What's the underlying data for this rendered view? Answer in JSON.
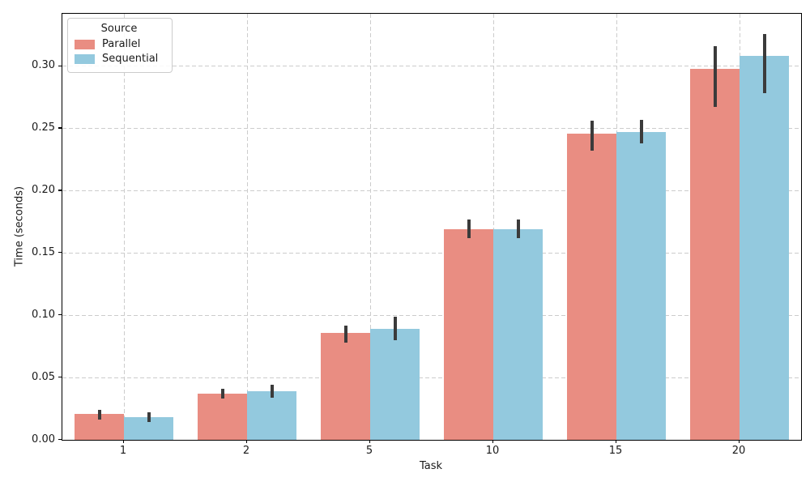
{
  "chart_data": {
    "type": "bar",
    "title": "",
    "xlabel": "Task",
    "ylabel": "Time (seconds)",
    "categories": [
      "1",
      "2",
      "5",
      "10",
      "15",
      "20"
    ],
    "series": [
      {
        "name": "Parallel",
        "color": "#E98D82",
        "values": [
          0.021,
          0.037,
          0.086,
          0.169,
          0.246,
          0.298
        ],
        "err_lo": [
          0.016,
          0.033,
          0.078,
          0.162,
          0.232,
          0.267
        ],
        "err_hi": [
          0.024,
          0.041,
          0.092,
          0.177,
          0.256,
          0.316
        ]
      },
      {
        "name": "Sequential",
        "color": "#93C9DE",
        "values": [
          0.018,
          0.039,
          0.089,
          0.169,
          0.247,
          0.308
        ],
        "err_lo": [
          0.014,
          0.034,
          0.08,
          0.162,
          0.238,
          0.278
        ],
        "err_hi": [
          0.022,
          0.044,
          0.099,
          0.177,
          0.257,
          0.326
        ]
      }
    ],
    "ylim": [
      0,
      0.342
    ],
    "yticks": [
      "0.00",
      "0.05",
      "0.10",
      "0.15",
      "0.20",
      "0.25",
      "0.30"
    ],
    "legend": {
      "title": "Source",
      "position": "upper left"
    },
    "grid": true,
    "grid_color": "#cccccc",
    "errorbar_color": "#3B3B3B",
    "spine_color": "#000000"
  }
}
